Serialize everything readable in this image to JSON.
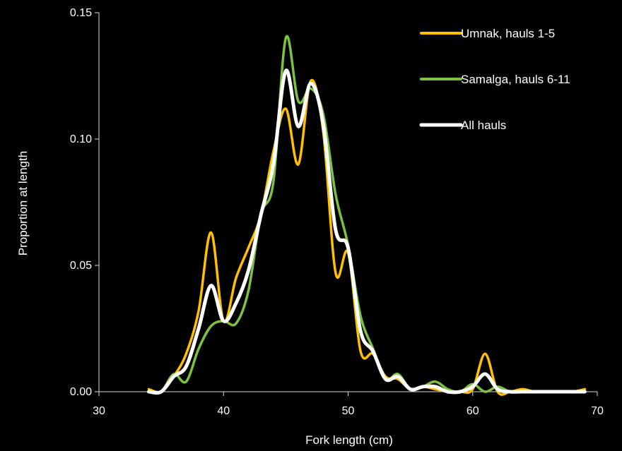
{
  "chart_data": {
    "type": "line",
    "title": "",
    "xlabel": "Fork length (cm)",
    "ylabel": "Proportion at length",
    "xlim": [
      30,
      70
    ],
    "ylim": [
      0,
      0.15
    ],
    "x_ticks": [
      "30",
      "40",
      "50",
      "60",
      "70"
    ],
    "y_ticks": [
      "0.00",
      "0.05",
      "0.10",
      "0.15"
    ],
    "grid": false,
    "legend_position": "top-right",
    "series": [
      {
        "name": "Umnak, hauls 1-5",
        "color": "#FFC000",
        "x": [
          34,
          35,
          36,
          37,
          38,
          39,
          40,
          41,
          42,
          43,
          44,
          45,
          46,
          47,
          48,
          49,
          50,
          51,
          52,
          53,
          54,
          55,
          56,
          57,
          58,
          59,
          60,
          61,
          62,
          63,
          64,
          65,
          66,
          67,
          68,
          69
        ],
        "y": [
          0.001,
          0.0,
          0.006,
          0.015,
          0.032,
          0.063,
          0.028,
          0.045,
          0.057,
          0.07,
          0.095,
          0.112,
          0.09,
          0.123,
          0.103,
          0.047,
          0.055,
          0.016,
          0.015,
          0.006,
          0.005,
          0.001,
          0.002,
          0.001,
          0.0,
          0.0,
          0.001,
          0.015,
          0.0,
          0.0,
          0.001,
          0.0,
          0.0,
          0.0,
          0.0,
          0.001
        ]
      },
      {
        "name": "Samalga, hauls 6-11",
        "color": "#7DC142",
        "x": [
          34,
          35,
          36,
          37,
          38,
          39,
          40,
          41,
          42,
          43,
          44,
          45,
          46,
          47,
          48,
          49,
          50,
          51,
          52,
          53,
          54,
          55,
          56,
          57,
          58,
          59,
          60,
          61,
          62,
          63,
          64,
          65,
          66,
          67,
          68,
          69
        ],
        "y": [
          0.0,
          0.0,
          0.007,
          0.004,
          0.017,
          0.026,
          0.028,
          0.027,
          0.04,
          0.07,
          0.083,
          0.14,
          0.115,
          0.12,
          0.11,
          0.078,
          0.058,
          0.03,
          0.017,
          0.005,
          0.007,
          0.001,
          0.002,
          0.004,
          0.001,
          0.0,
          0.003,
          0.0,
          0.002,
          0.0,
          0.0,
          0.0,
          0.0,
          0.0,
          0.0,
          0.0
        ]
      },
      {
        "name": "All hauls",
        "color": "#FFFFFF",
        "x": [
          34,
          35,
          36,
          37,
          38,
          39,
          40,
          41,
          42,
          43,
          44,
          45,
          46,
          47,
          48,
          49,
          50,
          51,
          52,
          53,
          54,
          55,
          56,
          57,
          58,
          59,
          60,
          61,
          62,
          63,
          64,
          65,
          66,
          67,
          68,
          69
        ],
        "y": [
          0.0,
          0.0,
          0.006,
          0.01,
          0.025,
          0.042,
          0.028,
          0.035,
          0.048,
          0.07,
          0.09,
          0.127,
          0.105,
          0.122,
          0.106,
          0.064,
          0.057,
          0.024,
          0.016,
          0.005,
          0.006,
          0.001,
          0.002,
          0.002,
          0.0,
          0.0,
          0.002,
          0.007,
          0.001,
          0.0,
          0.0,
          0.0,
          0.0,
          0.0,
          0.0,
          0.0
        ]
      }
    ]
  }
}
